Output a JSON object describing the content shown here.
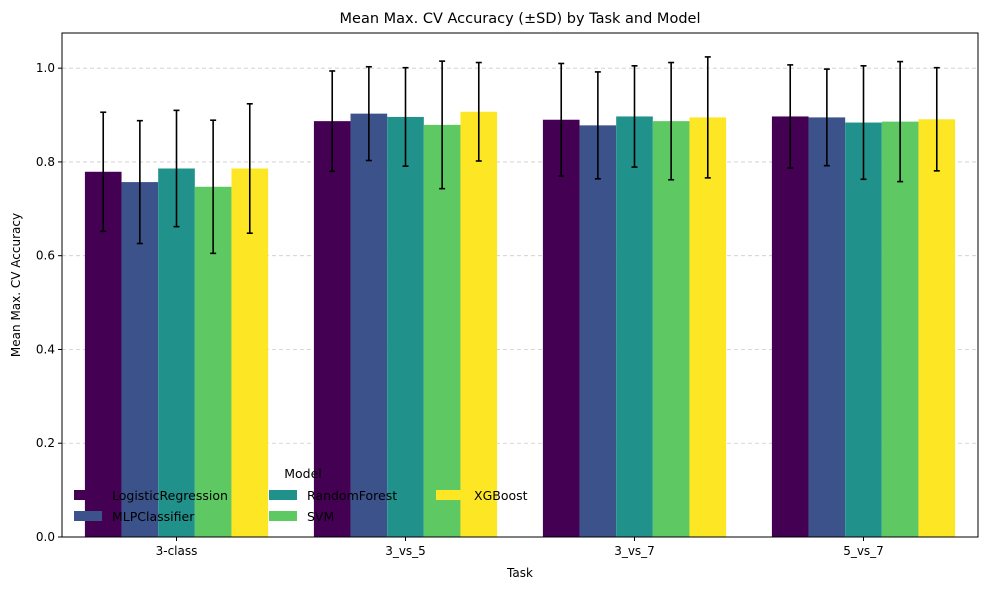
{
  "chart_data": {
    "type": "bar",
    "title": "Mean Max. CV Accuracy (±SD) by Task and Model",
    "xlabel": "Task",
    "ylabel": "Mean Max. CV Accuracy",
    "ylim": [
      0,
      1.075
    ],
    "yticks": [
      "0.0",
      "0.2",
      "0.4",
      "0.6",
      "0.8",
      "1.0"
    ],
    "grid": "y-dashed",
    "categories": [
      "3-class",
      "3_vs_5",
      "3_vs_7",
      "5_vs_7"
    ],
    "legend": {
      "title": "Model",
      "position": "lower-left"
    },
    "series": [
      {
        "name": "LogisticRegression",
        "color": "#440154",
        "values": [
          0.779,
          0.887,
          0.89,
          0.897
        ],
        "errors": [
          0.127,
          0.107,
          0.12,
          0.11
        ]
      },
      {
        "name": "MLPClassifier",
        "color": "#3b528b",
        "values": [
          0.757,
          0.903,
          0.878,
          0.895
        ],
        "errors": [
          0.131,
          0.1,
          0.114,
          0.103
        ]
      },
      {
        "name": "RandomForest",
        "color": "#21918c",
        "values": [
          0.786,
          0.896,
          0.897,
          0.884
        ],
        "errors": [
          0.124,
          0.105,
          0.108,
          0.121
        ]
      },
      {
        "name": "SVM",
        "color": "#5ec962",
        "values": [
          0.747,
          0.879,
          0.887,
          0.886
        ],
        "errors": [
          0.142,
          0.136,
          0.125,
          0.128
        ]
      },
      {
        "name": "XGBoost",
        "color": "#fde725",
        "values": [
          0.786,
          0.907,
          0.895,
          0.891
        ],
        "errors": [
          0.138,
          0.105,
          0.129,
          0.11
        ]
      }
    ]
  }
}
